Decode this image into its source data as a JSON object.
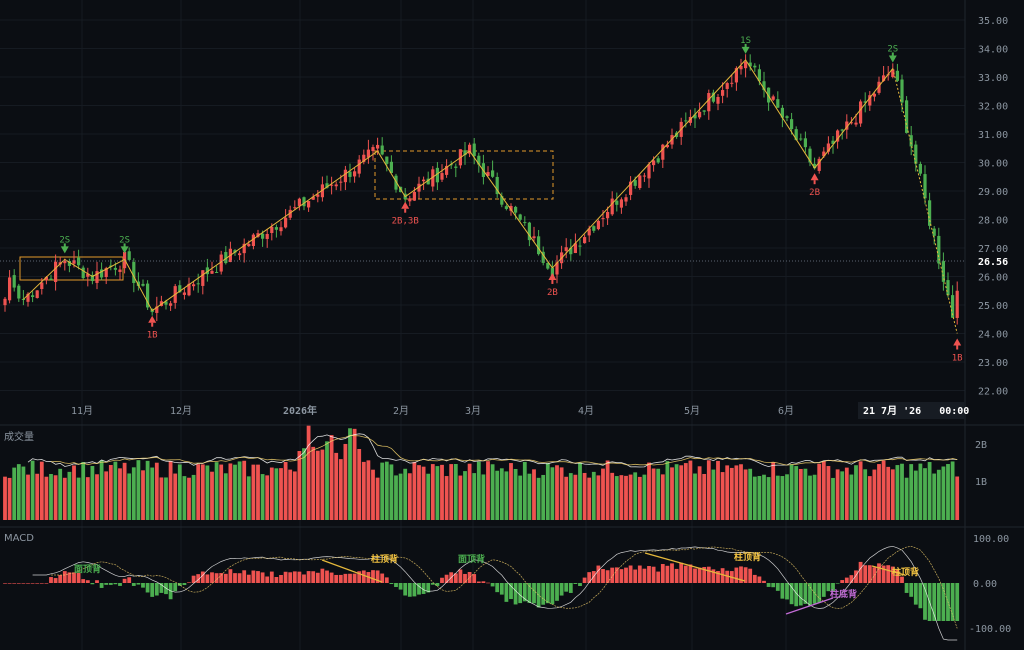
{
  "chart_data": {
    "type": "candlestick",
    "colors": {
      "up": "#ef5350",
      "down": "#4caf50",
      "zigzag": "#e5b83b",
      "box": "#e39a2b",
      "ma_fast": "#ffffff",
      "ma_slow": "#f2d06b",
      "bottom_div": "#c36bd6"
    },
    "price_axis": {
      "ticks": [
        "35.00",
        "34.00",
        "33.00",
        "32.00",
        "31.00",
        "30.00",
        "29.00",
        "28.00",
        "27.00",
        "26.00",
        "25.00",
        "24.00",
        "23.00",
        "22.00"
      ],
      "ylim": [
        22,
        35
      ]
    },
    "last_price": "26.56",
    "time_axis": {
      "ticks": [
        "11月",
        "12月",
        "2026年",
        "2月",
        "3月",
        "4月",
        "5月",
        "6月"
      ]
    },
    "crosshair_label": "21 7月 '26   00:00",
    "zigzag": [
      25.2,
      26.6,
      26.0,
      26.6,
      24.8,
      30.4,
      28.8,
      30.4,
      26.3,
      33.6,
      29.8,
      33.3,
      24.0
    ],
    "signals": [
      {
        "text": "2S",
        "kind": "sell"
      },
      {
        "text": "2S",
        "kind": "sell"
      },
      {
        "text": "1B",
        "kind": "buy"
      },
      {
        "text": "2B,3B",
        "kind": "buy"
      },
      {
        "text": "2B",
        "kind": "buy"
      },
      {
        "text": "1S",
        "kind": "sell"
      },
      {
        "text": "2B",
        "kind": "buy"
      },
      {
        "text": "2S",
        "kind": "sell"
      },
      {
        "text": "1B",
        "kind": "buy"
      }
    ],
    "volume_pane": {
      "title": "成交量",
      "ticks": [
        "2B",
        "1B"
      ]
    },
    "macd_pane": {
      "title": "MACD",
      "ticks": [
        "100.00",
        "0.00",
        "-100.00"
      ],
      "annotations": [
        "面顶背",
        "柱顶背",
        "面顶背",
        "柱顶背",
        "柱底背",
        "柱顶背"
      ]
    }
  }
}
